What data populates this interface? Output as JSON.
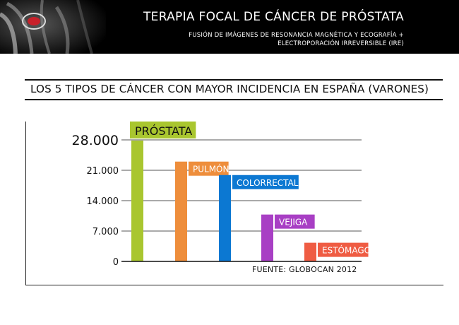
{
  "header": {
    "title": "TERAPIA FOCAL DE CÁNCER DE PRÓSTATA",
    "subtitle_line1": "FUSIÓN DE IMÁGENES DE RESONANCIA MAGNÉTICA Y ECOGRAFÍA  +",
    "subtitle_line2": "ELECTROPORACIÓN IRREVERSIBLE (IRE)"
  },
  "section_title": "LOS 5 TIPOS DE CÁNCER CON MAYOR INCIDENCIA EN ESPAÑA (VARONES)",
  "source": "FUENTE: GLOBOCAN 2012",
  "chart_data": {
    "type": "bar",
    "categories": [
      "PRÓSTATA",
      "PULMÓN",
      "COLORRECTAL",
      "VEJIGA",
      "ESTÓMAGO"
    ],
    "values": [
      27850,
      23000,
      19900,
      10800,
      4300
    ],
    "colors": [
      "#a9c62f",
      "#ee8e3c",
      "#0c78d2",
      "#a83fc4",
      "#ef5c43"
    ],
    "y_ticks": [
      0,
      7000,
      14000,
      21000,
      28000
    ],
    "y_tick_labels": [
      "0",
      "7.000",
      "14.000",
      "21.000",
      "28.000"
    ],
    "ylim": [
      0,
      28000
    ],
    "grid": true,
    "title": "",
    "xlabel": "",
    "ylabel": ""
  }
}
